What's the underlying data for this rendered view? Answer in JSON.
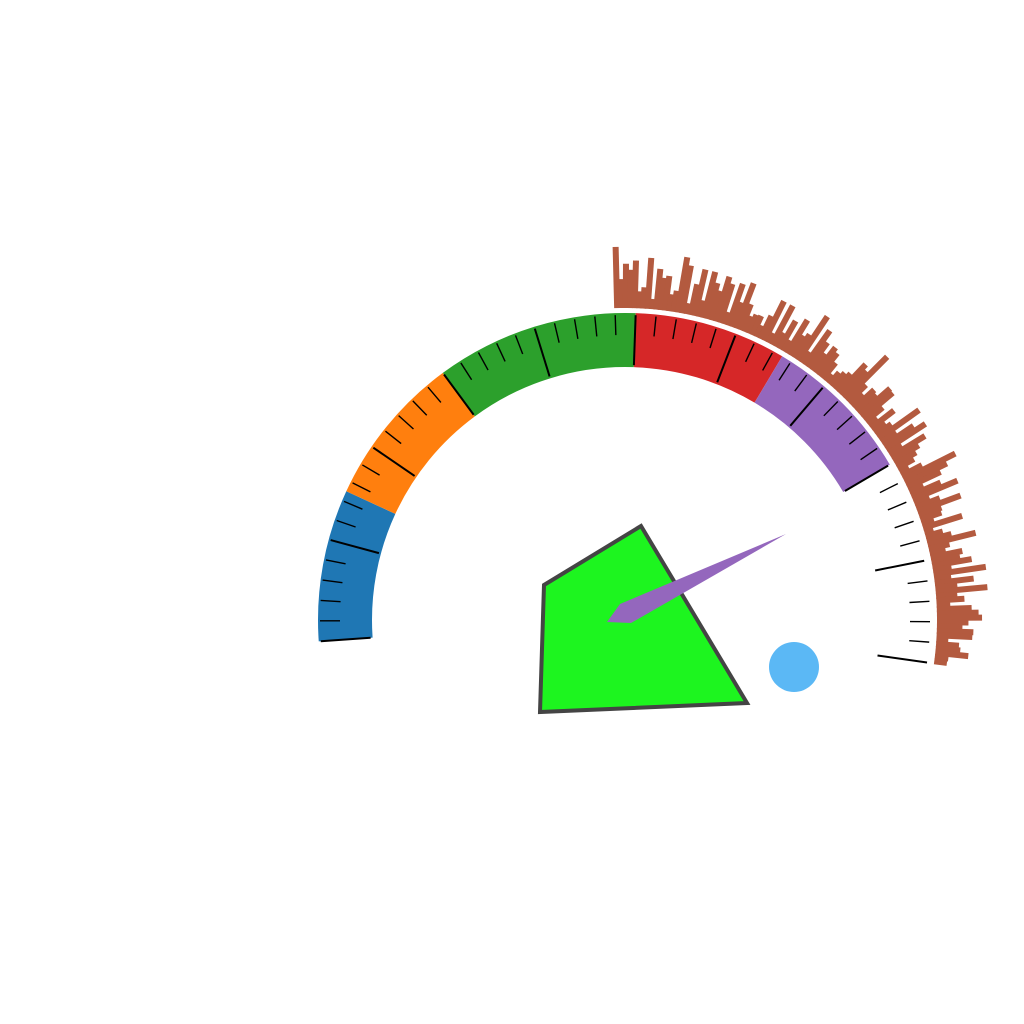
{
  "chart_data": {
    "type": "gauge",
    "range": [
      0,
      1
    ],
    "value_fraction": 0.84,
    "bands": [
      {
        "start": 0.0,
        "end": 0.15,
        "color": "#1f77b4"
      },
      {
        "start": 0.15,
        "end": 0.3,
        "color": "#ff7f0e"
      },
      {
        "start": 0.3,
        "end": 0.5,
        "color": "#2ca02c"
      },
      {
        "start": 0.5,
        "end": 0.65,
        "color": "#d62728"
      },
      {
        "start": 0.65,
        "end": 0.8,
        "color": "#9467bd"
      }
    ],
    "major_ticks": 10,
    "minor_per_major": 5,
    "needle_color": "#9467bd",
    "polygon_color": "#1df51f",
    "polygon_edge_color": "#444444",
    "marker_color": "#5bb8f5",
    "histogram": {
      "color": "#b35a3f",
      "start_fraction": 0.48,
      "end_fraction": 1.0,
      "values": [
        0.72,
        0.34,
        0.52,
        0.45,
        0.56,
        0.2,
        0.25,
        0.6,
        0.12,
        0.48,
        0.38,
        0.41,
        0.2,
        0.25,
        0.66,
        0.57,
        0.13,
        0.37,
        0.56,
        0.2,
        0.56,
        0.44,
        0.36,
        0.55,
        0.48,
        0.15,
        0.52,
        0.31,
        0.57,
        0.33,
        0.2,
        0.24,
        0.25,
        0.15,
        0.3,
        0.52,
        0.13,
        0.52,
        0.19,
        0.38,
        0.15,
        0.46,
        0.28,
        0.33,
        0.62,
        0.16,
        0.5,
        0.37,
        0.25,
        0.38,
        0.34,
        0.24,
        0.11,
        0.18,
        0.22,
        0.26,
        0.46,
        0.41,
        0.7,
        0.29,
        0.19,
        0.32,
        0.3,
        0.47,
        0.46,
        0.26,
        0.13,
        0.34,
        0.17,
        0.22,
        0.58,
        0.21,
        0.42,
        0.55,
        0.18,
        0.47,
        0.35,
        0.28,
        0.22,
        0.12,
        0.27,
        0.68,
        0.54,
        0.43,
        0.18,
        0.38,
        0.57,
        0.19,
        0.3,
        0.54,
        0.28,
        0.26,
        0.15,
        0.48,
        0.11,
        0.21,
        0.3,
        0.58,
        0.25,
        0.19,
        0.38,
        0.34,
        0.47,
        0.22,
        0.62,
        0.2,
        0.46,
        0.26,
        0.61,
        0.25,
        0.33,
        0.16,
        0.41,
        0.49,
        0.53,
        0.37,
        0.3,
        0.43,
        0.42,
        0.14,
        0.27,
        0.29,
        0.39,
        0.16,
        0.15
      ]
    }
  }
}
